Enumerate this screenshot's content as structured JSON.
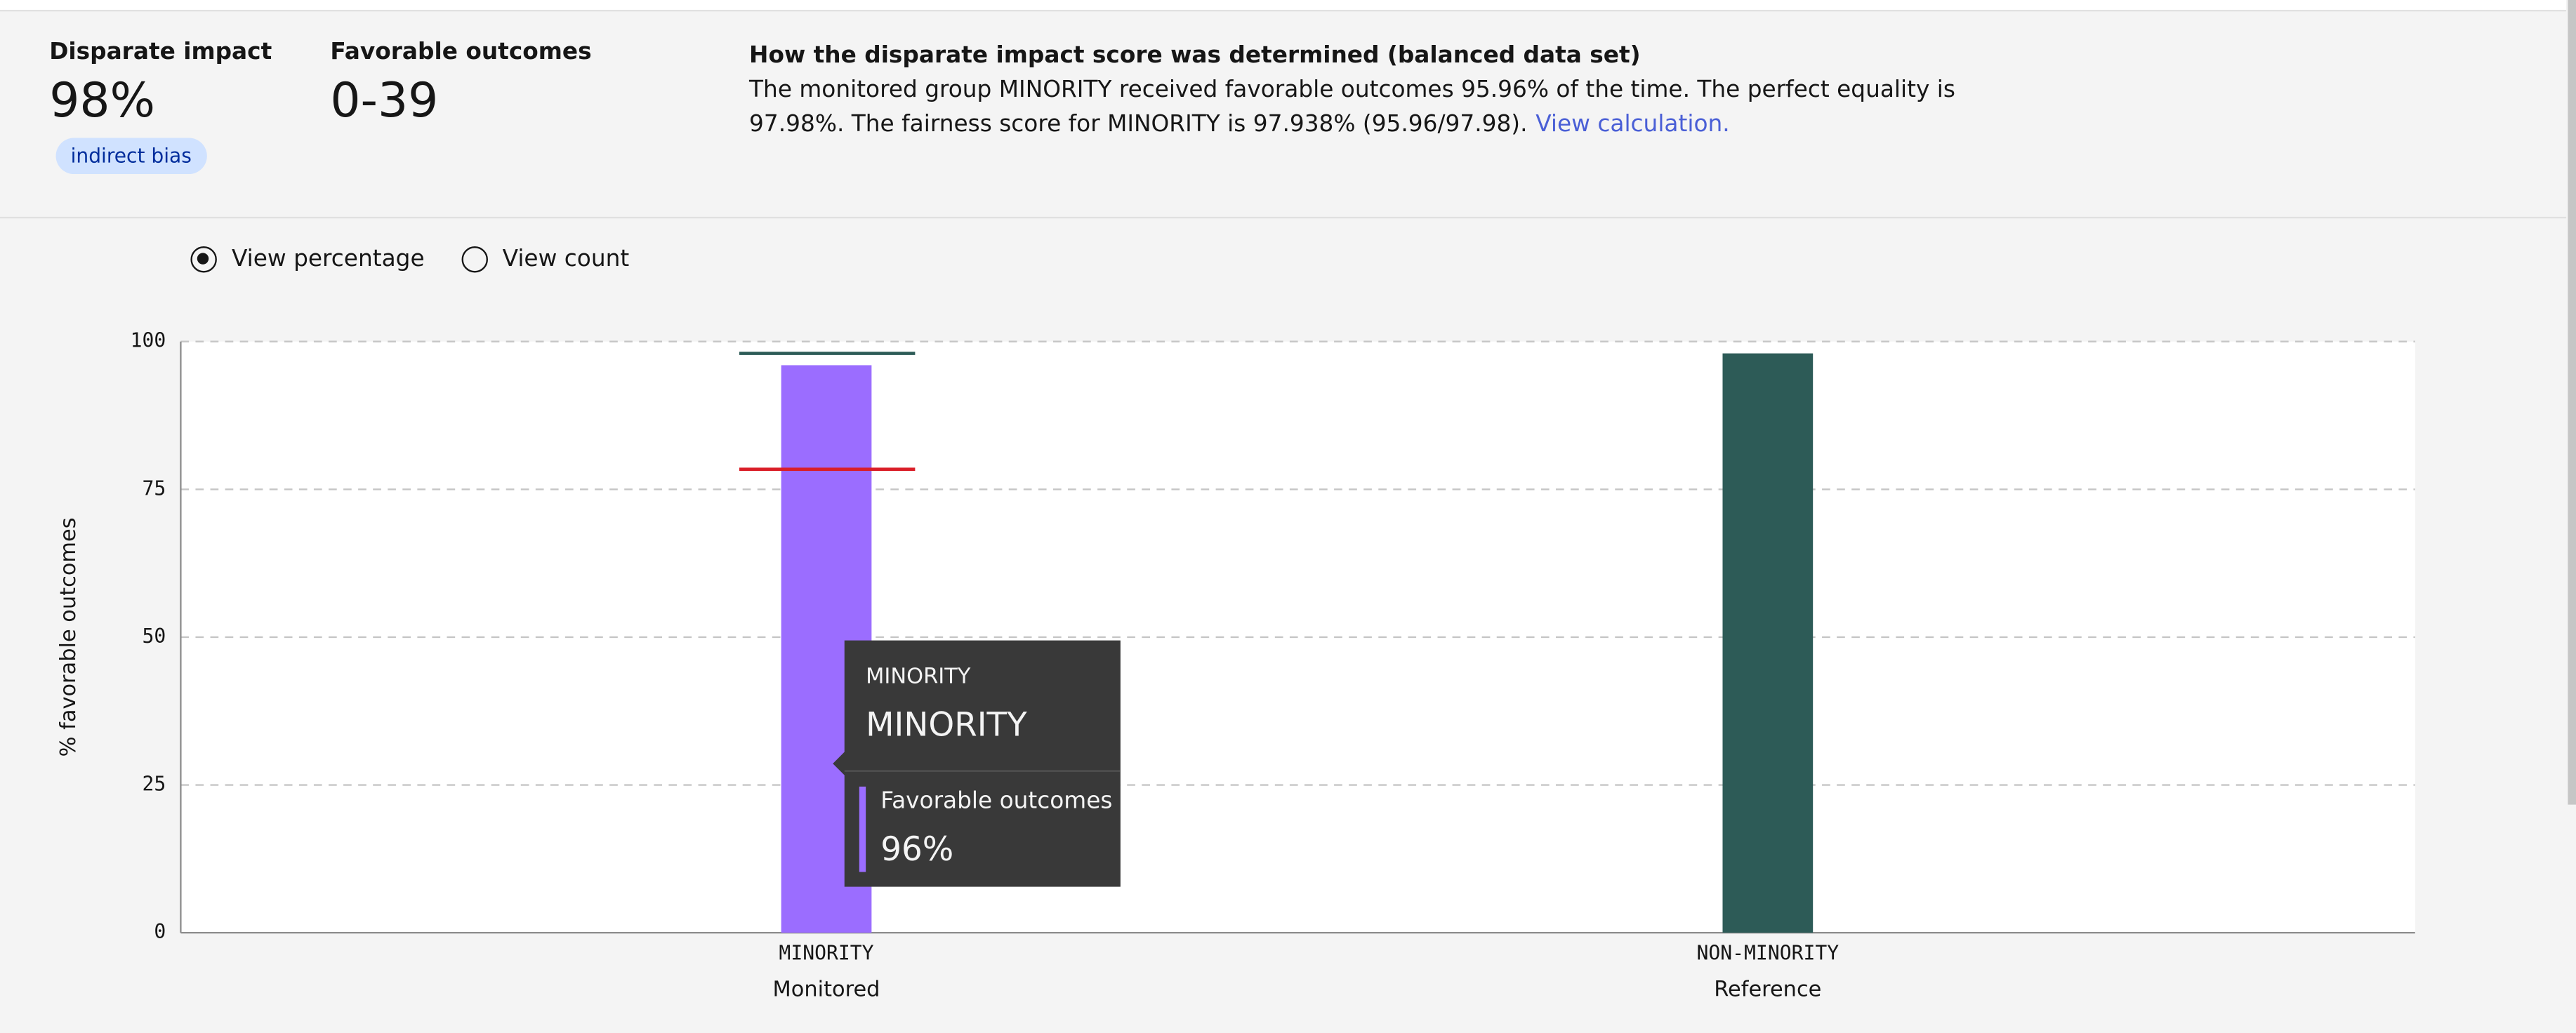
{
  "summary": [
    {
      "label": "Disparate impact",
      "value": "98%",
      "tag": "indirect bias"
    },
    {
      "label": "Favorable outcomes",
      "value": "0-39"
    }
  ],
  "explanation": {
    "title": "How the disparate impact score was determined (balanced data set)",
    "text": "The monitored group MINORITY received favorable outcomes 95.96% of the time. The perfect equality is 97.98%. The fairness score for MINORITY is 97.938% (95.96/97.98).",
    "link": "View calculation."
  },
  "controls": [
    "View percentage",
    "View count"
  ],
  "chart_data": {
    "type": "bar",
    "ylabel": "% favorable outcomes",
    "categories": [
      "MINORITY",
      "NON-MINORITY"
    ],
    "groups": [
      "Monitored",
      "Reference"
    ],
    "series_name": "Favorable outcomes",
    "values": [
      96,
      98
    ],
    "value_labels": [
      "96%",
      null
    ],
    "colors": [
      "#9b6dff",
      "#2d5b57"
    ],
    "lines": [
      {
        "value": 98,
        "color": "#2d5b57"
      },
      {
        "value": 78.4,
        "color": "#da1e28"
      }
    ],
    "ylim": [
      0,
      100
    ],
    "yticks": [
      0,
      25,
      50,
      75,
      100
    ],
    "grid": true
  }
}
